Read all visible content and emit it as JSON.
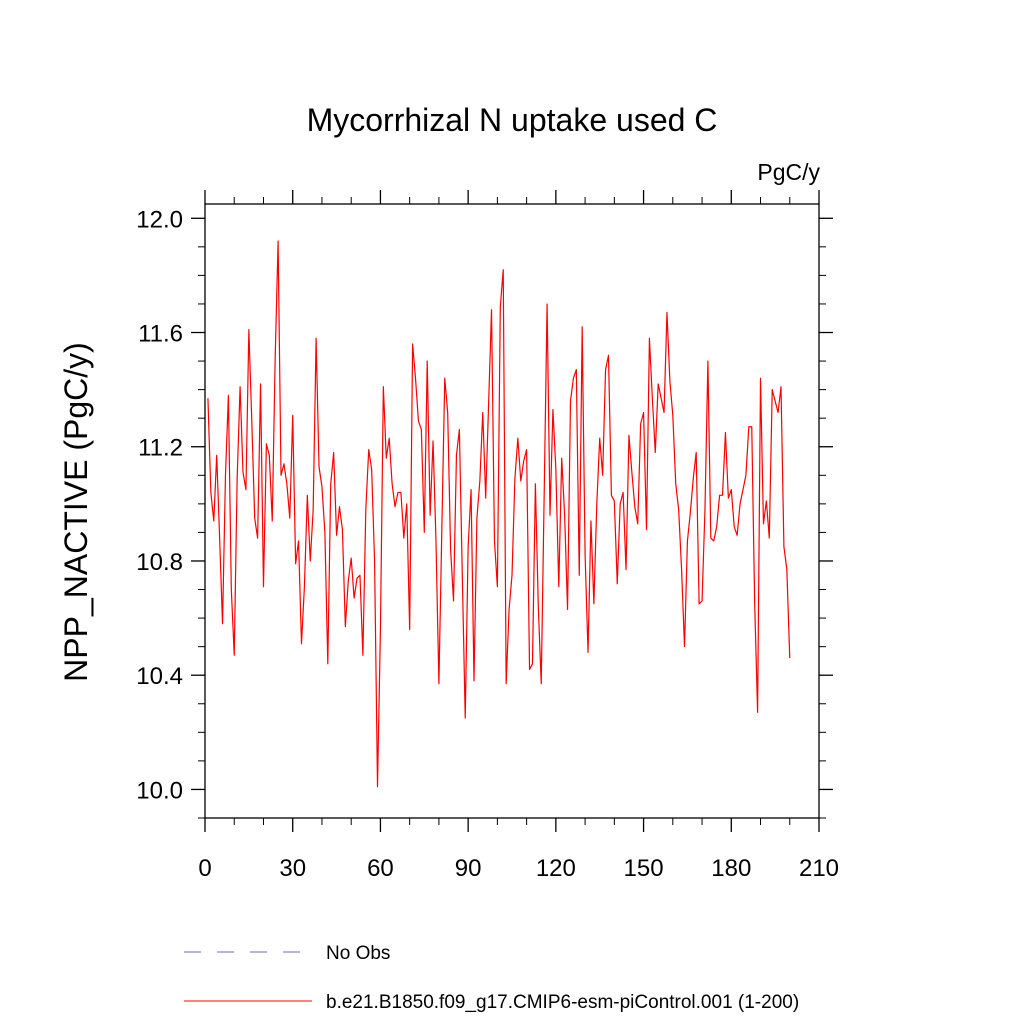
{
  "chart_data": {
    "type": "line",
    "title": "Mycorrhizal N uptake used C",
    "units": "PgC/y",
    "ylabel": "NPP_NACTIVE  (PgC/y)",
    "xlabel": "",
    "xlim": [
      0,
      210
    ],
    "ylim": [
      9.9,
      12.05
    ],
    "xticks": [
      "0",
      "30",
      "60",
      "90",
      "120",
      "150",
      "180",
      "210"
    ],
    "yticks": [
      "10.0",
      "10.4",
      "10.8",
      "11.2",
      "11.6",
      "12.0"
    ],
    "grid": false,
    "legend_position": "bottom",
    "series": [
      {
        "name": "b.e21.B1850.f09_g17.CMIP6-esm-piControl.001 (1-200)",
        "color": "#ff0000",
        "style": "solid",
        "x_start": 1,
        "values": [
          11.37,
          11.04,
          10.94,
          11.17,
          10.88,
          10.58,
          11.1,
          11.38,
          10.7,
          10.47,
          11.09,
          11.41,
          11.11,
          11.05,
          11.61,
          11.29,
          10.95,
          10.88,
          11.42,
          10.71,
          11.21,
          11.17,
          10.94,
          11.51,
          11.92,
          11.1,
          11.14,
          11.07,
          10.95,
          11.31,
          10.79,
          10.87,
          10.51,
          10.71,
          11.03,
          10.8,
          10.98,
          11.58,
          11.13,
          11.06,
          10.9,
          10.44,
          11.07,
          11.18,
          10.89,
          10.99,
          10.91,
          10.57,
          10.73,
          10.81,
          10.67,
          10.74,
          10.75,
          10.47,
          10.98,
          11.19,
          11.12,
          10.8,
          10.01,
          10.56,
          11.41,
          11.16,
          11.23,
          11.07,
          10.99,
          11.04,
          11.04,
          10.88,
          11.0,
          10.56,
          11.56,
          11.44,
          11.29,
          11.26,
          10.9,
          11.5,
          10.96,
          11.22,
          10.87,
          10.37,
          10.91,
          11.44,
          11.32,
          10.84,
          10.66,
          11.17,
          11.26,
          10.75,
          10.25,
          10.85,
          11.05,
          10.38,
          10.95,
          11.08,
          11.32,
          11.02,
          11.35,
          11.68,
          10.87,
          10.71,
          11.69,
          11.82,
          10.37,
          10.63,
          10.75,
          11.09,
          11.23,
          11.08,
          11.15,
          11.19,
          10.42,
          10.44,
          11.07,
          10.64,
          10.37,
          11.03,
          11.7,
          10.96,
          11.33,
          11.12,
          10.71,
          11.16,
          10.96,
          10.63,
          11.36,
          11.44,
          11.47,
          10.75,
          11.62,
          10.82,
          10.48,
          10.94,
          10.65,
          11.0,
          11.23,
          11.1,
          11.47,
          11.52,
          11.03,
          11.01,
          10.72,
          11.0,
          11.04,
          10.77,
          11.24,
          11.11,
          10.99,
          10.93,
          11.28,
          11.32,
          10.91,
          11.58,
          11.37,
          11.18,
          11.42,
          11.37,
          11.32,
          11.67,
          11.43,
          11.31,
          11.07,
          10.98,
          10.77,
          10.5,
          10.87,
          10.97,
          11.09,
          11.18,
          10.65,
          10.66,
          10.98,
          11.5,
          10.88,
          10.87,
          10.92,
          11.03,
          11.03,
          11.25,
          11.02,
          11.05,
          10.92,
          10.89,
          11.0,
          11.05,
          11.1,
          11.27,
          11.27,
          10.65,
          10.27,
          11.44,
          10.93,
          11.01,
          10.88,
          11.4,
          11.36,
          11.32,
          11.41,
          10.85,
          10.77,
          10.46
        ]
      },
      {
        "name": "No Obs",
        "color": "#6e6eb4",
        "style": "dashed",
        "values": []
      }
    ]
  }
}
